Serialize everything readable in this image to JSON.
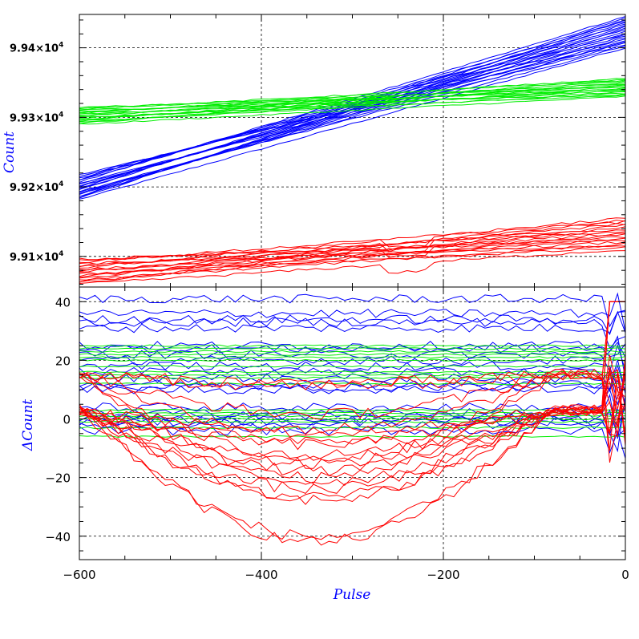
{
  "chart_data": [
    {
      "type": "line",
      "panel": "top",
      "xlabel": "",
      "ylabel": "Count",
      "xlim": [
        -600,
        0
      ],
      "ylim": [
        99056,
        99448
      ],
      "xticks": [
        -600,
        -400,
        -200,
        0
      ],
      "yticks": [
        99100,
        99200,
        99300,
        99400
      ],
      "ytick_labels": [
        {
          "mantissa": "9.91×10",
          "exp": "4"
        },
        {
          "mantissa": "9.92×10",
          "exp": "4"
        },
        {
          "mantissa": "9.93×10",
          "exp": "4"
        },
        {
          "mantissa": "9.94×10",
          "exp": "4"
        }
      ],
      "grid": true,
      "series": [
        {
          "color": "#0000ff",
          "x": [
            -600,
            0
          ],
          "count": 22,
          "start_range": [
            99182,
            99219
          ],
          "end_range": [
            99400,
            99445
          ]
        },
        {
          "color": "#00ee00",
          "x": [
            -600,
            0
          ],
          "count": 18,
          "start_range": [
            99290,
            99316
          ],
          "end_range": [
            99330,
            99356
          ]
        },
        {
          "color": "#ff0000",
          "x": [
            -600,
            0
          ],
          "count": 18,
          "start_range": [
            99060,
            99098
          ],
          "end_range": [
            99110,
            99155
          ]
        }
      ]
    },
    {
      "type": "line",
      "panel": "bottom",
      "xlabel": "Pulse",
      "ylabel": "ΔCount",
      "xlim": [
        -600,
        0
      ],
      "ylim": [
        -48,
        45
      ],
      "xticks": [
        -600,
        -400,
        -200,
        0
      ],
      "xtick_labels": [
        "−600",
        "−400",
        "−200",
        "0"
      ],
      "yticks": [
        -40,
        -20,
        0,
        20,
        40
      ],
      "ytick_labels": [
        "−40",
        "−20",
        "0",
        "20",
        "40"
      ],
      "grid": true,
      "series": [
        {
          "color": "#0000ff",
          "x": [
            -600,
            0
          ],
          "count": 22,
          "offsets": [
            41,
            36,
            34,
            31,
            25,
            22,
            20,
            18,
            16,
            14,
            12,
            10,
            4,
            2,
            1,
            0,
            -1,
            -2,
            -4,
            24,
            33,
            11
          ]
        },
        {
          "color": "#00ee00",
          "x": [
            -600,
            0
          ],
          "count": 18,
          "offsets": [
            25,
            24,
            22,
            21,
            20,
            18,
            16,
            14,
            12,
            2,
            1,
            0,
            -1,
            -3,
            -6,
            23,
            15,
            3
          ]
        },
        {
          "color": "#ff0000",
          "x": [
            -600,
            0
          ],
          "count": 18,
          "end_values": [
            -1,
            -4,
            -8,
            -12,
            -14,
            -17,
            -19,
            -24,
            -27,
            -29,
            -30,
            -31,
            -36,
            -45,
            -47,
            0,
            -20,
            -10
          ]
        }
      ]
    }
  ],
  "colors": {
    "blue": "#0000ff",
    "green": "#00ee00",
    "red": "#ff0000",
    "axis_title": "#0000ff"
  }
}
